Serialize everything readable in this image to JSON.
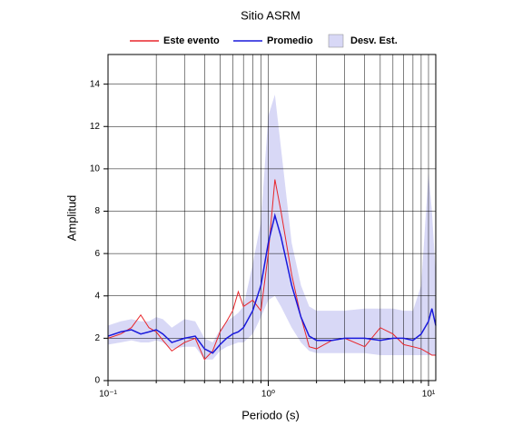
{
  "chart_data": {
    "type": "line",
    "title": "Sitio ASRM",
    "x_label": "Periodo (s)",
    "y_label": "Amplitud",
    "x": [
      0.1,
      0.12,
      0.14,
      0.16,
      0.18,
      0.2,
      0.22,
      0.25,
      0.3,
      0.35,
      0.4,
      0.45,
      0.5,
      0.55,
      0.6,
      0.65,
      0.7,
      0.8,
      0.9,
      1.0,
      1.1,
      1.2,
      1.4,
      1.6,
      1.8,
      2,
      2.5,
      3,
      4,
      5,
      6,
      7,
      8,
      9,
      10,
      10.5,
      11.1
    ],
    "series": [
      {
        "name": "Este evento",
        "color": "#e8262b",
        "values": [
          2.0,
          2.2,
          2.5,
          3.1,
          2.5,
          2.3,
          1.9,
          1.4,
          1.8,
          2.0,
          1.0,
          1.4,
          2.3,
          2.8,
          3.3,
          4.2,
          3.5,
          3.8,
          3.3,
          6.0,
          9.5,
          8.0,
          5.0,
          3.0,
          1.6,
          1.5,
          1.9,
          2.0,
          1.6,
          2.5,
          2.2,
          1.7,
          1.6,
          1.5,
          1.3,
          1.2,
          1.2
        ]
      },
      {
        "name": "Promedio",
        "color": "#1a1adc",
        "values": [
          2.1,
          2.3,
          2.4,
          2.2,
          2.3,
          2.4,
          2.2,
          1.8,
          2.0,
          2.1,
          1.5,
          1.3,
          1.7,
          2.0,
          2.2,
          2.3,
          2.5,
          3.3,
          4.5,
          6.5,
          7.8,
          6.8,
          4.5,
          3.0,
          2.1,
          1.9,
          1.9,
          2.0,
          2.0,
          1.9,
          2.0,
          2.0,
          1.9,
          2.2,
          2.8,
          3.4,
          2.6
        ]
      }
    ],
    "band": {
      "name": "Desv. Est.",
      "color": "#d8d8f6",
      "lower": [
        1.7,
        1.8,
        1.9,
        1.8,
        1.8,
        1.9,
        1.8,
        1.5,
        1.6,
        1.6,
        1.0,
        1.0,
        1.4,
        1.6,
        1.7,
        1.8,
        1.8,
        2.2,
        3.0,
        3.8,
        4.0,
        3.5,
        2.5,
        1.8,
        1.4,
        1.3,
        1.3,
        1.3,
        1.3,
        1.2,
        1.2,
        1.2,
        1.2,
        1.2,
        1.2,
        1.2,
        1.2
      ],
      "upper": [
        2.6,
        2.8,
        2.9,
        2.8,
        2.8,
        3.0,
        2.9,
        2.5,
        2.9,
        2.8,
        2.0,
        1.8,
        2.4,
        2.8,
        3.0,
        3.2,
        3.5,
        5.5,
        7.5,
        12.5,
        13.5,
        11.0,
        6.5,
        4.5,
        3.5,
        3.3,
        3.3,
        3.3,
        3.4,
        3.4,
        3.4,
        3.3,
        3.3,
        4.5,
        9.8,
        8.0,
        5.0
      ]
    },
    "xlim": [
      0.1,
      11.1
    ],
    "ylim": [
      0,
      15.4
    ],
    "xlog": true,
    "xticks": [
      {
        "value": 0.1,
        "label": "10⁻¹"
      },
      {
        "value": 1,
        "label": "10⁰"
      },
      {
        "value": 10,
        "label": "10¹"
      }
    ],
    "xminorticks": [
      0.2,
      0.3,
      0.4,
      0.5,
      0.6,
      0.7,
      0.8,
      0.9,
      2,
      3,
      4,
      5,
      6,
      7,
      8,
      9
    ],
    "yticks": [
      0,
      2,
      4,
      6,
      8,
      10,
      12,
      14
    ],
    "grid": true
  }
}
